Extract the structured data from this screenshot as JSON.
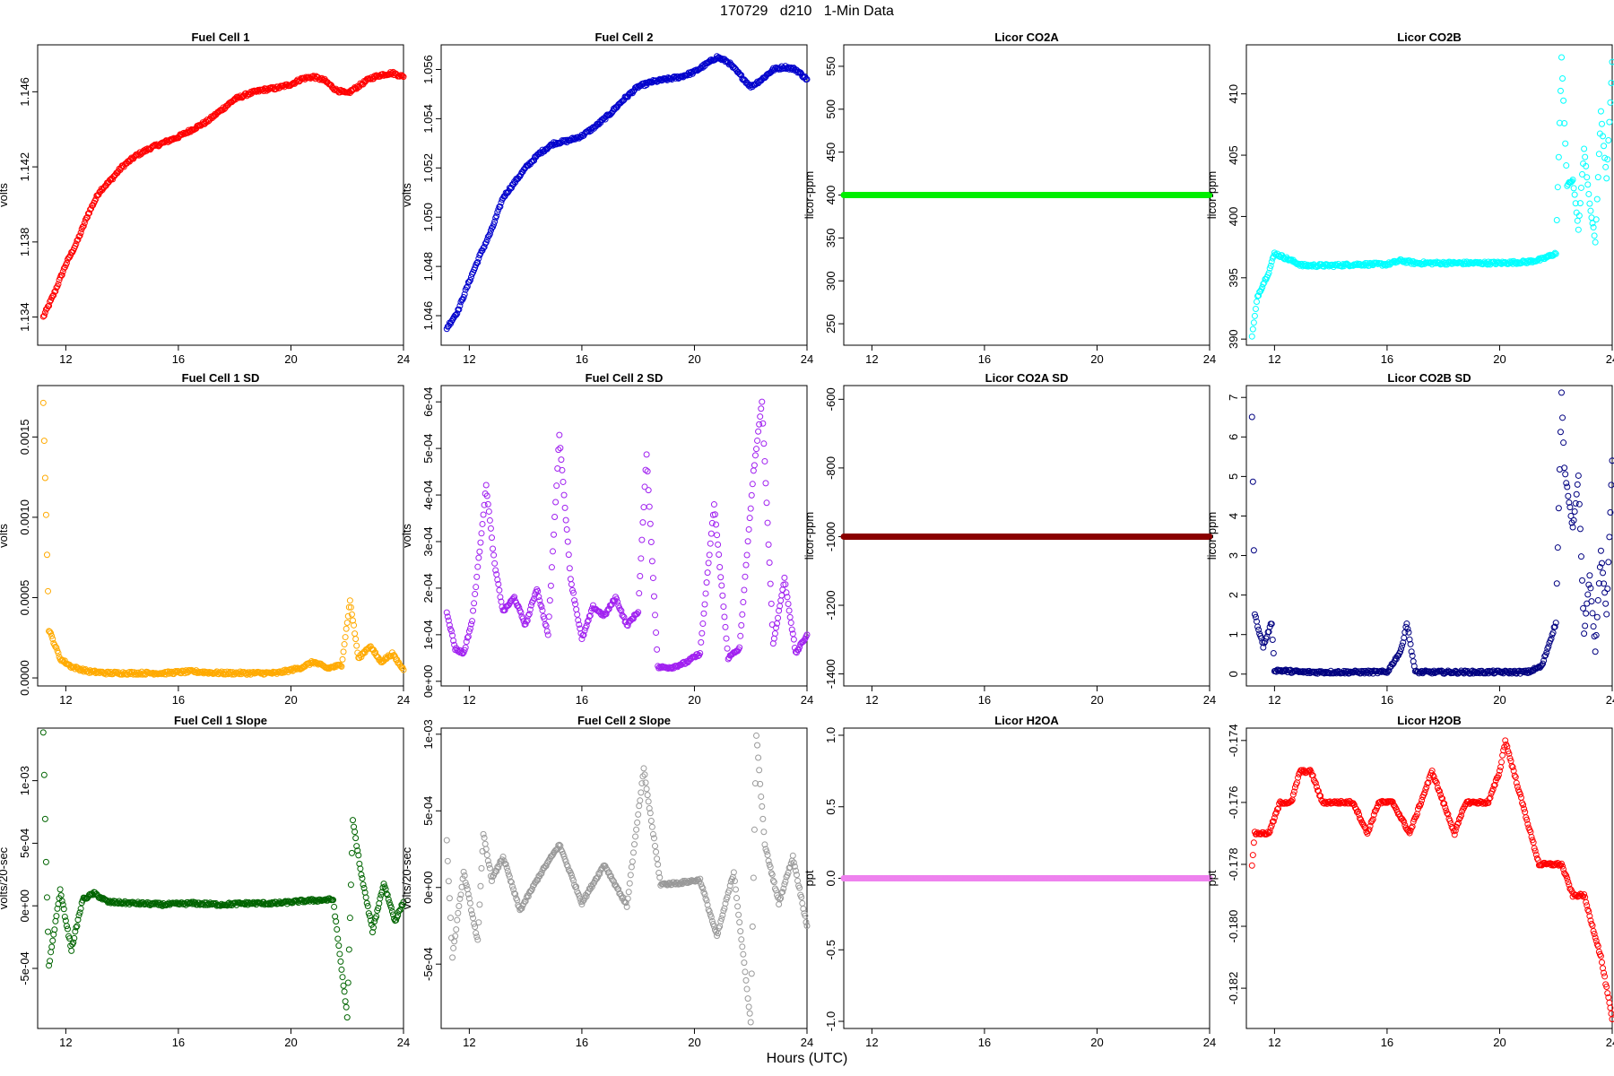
{
  "header": {
    "title": "170729   d210   1-Min Data",
    "x_axis_title": "Hours (UTC)"
  },
  "chart_data": [
    {
      "type": "scatter",
      "title": "Fuel Cell 1",
      "ylabel": "volts",
      "color": "#ff0000",
      "xlim": [
        11,
        24
      ],
      "ylim": [
        1.1325,
        1.1485
      ],
      "xticks": [
        12,
        16,
        20,
        24
      ],
      "yticks": [
        1.134,
        1.138,
        1.142,
        1.146
      ],
      "ytick_labels": [
        "1.134",
        "1.138",
        "1.142",
        "1.146"
      ],
      "series": [
        {
          "x": [
            11.2,
            11.6,
            12.0,
            12.4,
            12.8,
            13.2,
            13.6,
            14.0,
            14.5,
            15.0,
            15.5,
            16.0,
            16.5,
            17.0,
            17.5,
            18.0,
            18.5,
            19.0,
            19.5,
            20.0,
            20.4,
            20.8,
            21.2,
            21.6,
            22.0,
            22.4,
            22.8,
            23.2,
            23.6,
            24.0
          ],
          "y": [
            1.134,
            1.1353,
            1.1368,
            1.138,
            1.1395,
            1.1407,
            1.1413,
            1.142,
            1.1426,
            1.143,
            1.1433,
            1.1436,
            1.144,
            1.1444,
            1.145,
            1.1456,
            1.1459,
            1.1461,
            1.1462,
            1.1464,
            1.1467,
            1.1468,
            1.1466,
            1.1461,
            1.1459,
            1.1463,
            1.1467,
            1.1469,
            1.147,
            1.1468
          ]
        }
      ]
    },
    {
      "type": "scatter",
      "title": "Fuel Cell 2",
      "ylabel": "volts",
      "color": "#0000cc",
      "xlim": [
        11,
        24
      ],
      "ylim": [
        1.0448,
        1.057
      ],
      "xticks": [
        12,
        16,
        20,
        24
      ],
      "yticks": [
        1.046,
        1.048,
        1.05,
        1.052,
        1.054,
        1.056
      ],
      "ytick_labels": [
        "1.046",
        "1.048",
        "1.050",
        "1.052",
        "1.054",
        "1.056"
      ],
      "series": [
        {
          "x": [
            11.2,
            11.6,
            12.0,
            12.4,
            12.8,
            13.2,
            13.6,
            14.0,
            14.5,
            15.0,
            15.5,
            16.0,
            16.5,
            17.0,
            17.5,
            18.0,
            18.5,
            19.0,
            19.5,
            20.0,
            20.4,
            20.8,
            21.2,
            21.6,
            22.0,
            22.4,
            22.8,
            23.2,
            23.6,
            24.0
          ],
          "y": [
            1.0455,
            1.0462,
            1.0474,
            1.0485,
            1.0495,
            1.0508,
            1.0514,
            1.052,
            1.0526,
            1.053,
            1.0531,
            1.0533,
            1.0537,
            1.0542,
            1.0548,
            1.0553,
            1.0555,
            1.0556,
            1.0557,
            1.0559,
            1.0562,
            1.0565,
            1.0563,
            1.0558,
            1.0553,
            1.0556,
            1.056,
            1.0561,
            1.056,
            1.0556
          ]
        }
      ]
    },
    {
      "type": "scatter",
      "title": "Licor CO2A",
      "ylabel": "licor-ppm",
      "color": "#00ee00",
      "xlim": [
        11,
        24
      ],
      "ylim": [
        225,
        575
      ],
      "xticks": [
        12,
        16,
        20,
        24
      ],
      "yticks": [
        250,
        300,
        350,
        400,
        450,
        500,
        550
      ],
      "ytick_labels": [
        "250",
        "300",
        "350",
        "400",
        "450",
        "500",
        "550"
      ],
      "series": [
        {
          "x": [
            11.0,
            24.0
          ],
          "y": [
            400,
            400
          ]
        }
      ]
    },
    {
      "type": "scatter",
      "title": "Licor CO2B",
      "ylabel": "licor-ppm",
      "color": "#00ffff",
      "xlim": [
        11,
        24
      ],
      "ylim": [
        389.5,
        414
      ],
      "xticks": [
        12,
        16,
        20,
        24
      ],
      "yticks": [
        390,
        395,
        400,
        405,
        410
      ],
      "ytick_labels": [
        "390",
        "395",
        "400",
        "405",
        "410"
      ],
      "series": [
        {
          "x": [
            11.2,
            11.4,
            11.6,
            11.8,
            12.0,
            13.0,
            14.0,
            15.0,
            16.0,
            16.5,
            17.0,
            18.0,
            19.0,
            20.0,
            21.0,
            21.5,
            22.0,
            22.2,
            22.4,
            22.6,
            22.8,
            23.0,
            23.2,
            23.4,
            23.6,
            23.8,
            24.0
          ],
          "y": [
            390.2,
            393.5,
            394.5,
            395.5,
            397.0,
            396.0,
            396.0,
            396.1,
            396.1,
            396.4,
            396.2,
            396.2,
            396.2,
            396.2,
            396.3,
            396.5,
            397.0,
            412.9,
            402.5,
            403.0,
            399.0,
            405.5,
            401.0,
            398.0,
            408.5,
            403.0,
            412.6
          ]
        }
      ]
    },
    {
      "type": "scatter",
      "title": "Fuel Cell 1 SD",
      "ylabel": "volts",
      "color": "#ffaa00",
      "xlim": [
        11,
        24
      ],
      "ylim": [
        -5e-05,
        0.00182
      ],
      "xticks": [
        12,
        16,
        20,
        24
      ],
      "yticks": [
        0.0,
        0.0005,
        0.001,
        0.0015
      ],
      "ytick_labels": [
        "0.0000",
        "0.0005",
        "0.0010",
        "0.0015"
      ],
      "series": [
        {
          "x": [
            11.2,
            11.4,
            11.8,
            12.2,
            12.8,
            13.5,
            14.5,
            15.5,
            16.5,
            17.5,
            18.5,
            19.5,
            20.3,
            20.8,
            21.3,
            21.8,
            22.1,
            22.4,
            22.8,
            23.2,
            23.6,
            24.0
          ],
          "y": [
            0.00172,
            0.0003,
            0.00012,
            7e-05,
            4e-05,
            3e-05,
            3e-05,
            3e-05,
            4e-05,
            3e-05,
            3e-05,
            3e-05,
            6e-05,
            0.0001,
            6e-05,
            8e-05,
            0.00048,
            0.00012,
            0.0002,
            0.0001,
            0.00015,
            5e-05
          ]
        }
      ]
    },
    {
      "type": "scatter",
      "title": "Fuel Cell 2 SD",
      "ylabel": "volts",
      "color": "#a020f0",
      "xlim": [
        11,
        24
      ],
      "ylim": [
        -1e-05,
        0.000635
      ],
      "xticks": [
        12,
        16,
        20,
        24
      ],
      "yticks": [
        0.0,
        0.0001,
        0.0002,
        0.0003,
        0.0004,
        0.0005,
        0.0006
      ],
      "ytick_labels": [
        "0e+00",
        "1e-04",
        "2e-04",
        "3e-04",
        "4e-04",
        "5e-04",
        "6e-04"
      ],
      "series": [
        {
          "x": [
            11.2,
            11.5,
            11.8,
            12.1,
            12.4,
            12.6,
            12.9,
            13.2,
            13.6,
            14.0,
            14.4,
            14.8,
            15.2,
            15.6,
            16.0,
            16.4,
            16.8,
            17.2,
            17.6,
            18.0,
            18.3,
            18.7,
            19.2,
            19.7,
            20.2,
            20.7,
            21.2,
            21.6,
            22.1,
            22.4,
            22.8,
            23.2,
            23.6,
            24.0
          ],
          "y": [
            0.00015,
            7e-05,
            6e-05,
            0.00013,
            0.0003,
            0.00042,
            0.00025,
            0.00015,
            0.00018,
            0.00012,
            0.0002,
            0.0001,
            0.00053,
            0.00022,
            9e-05,
            0.00016,
            0.00014,
            0.00018,
            0.00012,
            0.00015,
            0.00049,
            3e-05,
            3e-05,
            4e-05,
            6e-05,
            0.00038,
            5e-05,
            7e-05,
            0.00045,
            0.0006,
            8e-05,
            0.00022,
            6e-05,
            0.0001
          ]
        }
      ]
    },
    {
      "type": "scatter",
      "title": "Licor CO2A SD",
      "ylabel": "licor-ppm",
      "color": "#8b0000",
      "xlim": [
        11,
        24
      ],
      "ylim": [
        -1435,
        -560
      ],
      "xticks": [
        12,
        16,
        20,
        24
      ],
      "yticks": [
        -1400,
        -1200,
        -1000,
        -800,
        -600
      ],
      "ytick_labels": [
        "-1400",
        "-1200",
        "-1000",
        "-800",
        "-600"
      ],
      "series": [
        {
          "x": [
            11.0,
            24.0
          ],
          "y": [
            -1000,
            -1000
          ]
        }
      ]
    },
    {
      "type": "scatter",
      "title": "Licor CO2B SD",
      "ylabel": "licor-ppm",
      "color": "#000080",
      "xlim": [
        11,
        24
      ],
      "ylim": [
        -0.3,
        7.3
      ],
      "xticks": [
        12,
        16,
        20,
        24
      ],
      "yticks": [
        0,
        1,
        2,
        3,
        4,
        5,
        6,
        7
      ],
      "ytick_labels": [
        "0",
        "1",
        "2",
        "3",
        "4",
        "5",
        "6",
        "7"
      ],
      "series": [
        {
          "x": [
            11.2,
            11.3,
            11.6,
            11.9,
            12.0,
            13.0,
            14.0,
            15.0,
            16.0,
            16.5,
            16.7,
            17.0,
            18.0,
            19.0,
            20.0,
            21.0,
            21.5,
            22.0,
            22.2,
            22.3,
            22.6,
            22.8,
            23.0,
            23.2,
            23.4,
            23.6,
            23.8,
            24.0
          ],
          "y": [
            6.5,
            1.5,
            0.7,
            1.3,
            0.1,
            0.05,
            0.05,
            0.05,
            0.05,
            0.6,
            1.3,
            0.05,
            0.05,
            0.05,
            0.05,
            0.05,
            0.2,
            1.3,
            7.1,
            5.2,
            3.7,
            5.0,
            1.0,
            2.5,
            0.6,
            3.1,
            1.5,
            5.4
          ]
        }
      ]
    },
    {
      "type": "scatter",
      "title": "Fuel Cell 1 Slope",
      "ylabel": "volts/20-sec",
      "color": "#006400",
      "xlim": [
        11,
        24
      ],
      "ylim": [
        -0.00098,
        0.00142
      ],
      "xticks": [
        12,
        16,
        20,
        24
      ],
      "yticks": [
        -0.0005,
        0.0,
        0.0005,
        0.001
      ],
      "ytick_labels": [
        "-5e-04",
        "0e+00",
        "5e-04",
        "1e-03"
      ],
      "series": [
        {
          "x": [
            11.2,
            11.3,
            11.4,
            11.8,
            12.2,
            12.6,
            13.0,
            13.5,
            14.5,
            15.5,
            16.5,
            17.5,
            18.5,
            19.5,
            20.5,
            21.5,
            22.0,
            22.2,
            22.5,
            22.9,
            23.3,
            23.7,
            24.0
          ],
          "y": [
            0.00138,
            0.00035,
            -0.00048,
            0.00012,
            -0.00035,
            5e-05,
            0.0001,
            3e-05,
            2e-05,
            1e-05,
            2e-05,
            1e-05,
            2e-05,
            2e-05,
            4e-05,
            5e-05,
            -0.00088,
            0.00068,
            0.00025,
            -0.0002,
            0.00018,
            -0.00012,
            3e-05
          ]
        }
      ]
    },
    {
      "type": "scatter",
      "title": "Fuel Cell 2 Slope",
      "ylabel": "volts/20-sec",
      "color": "#999999",
      "xlim": [
        11,
        24
      ],
      "ylim": [
        -0.00092,
        0.00104
      ],
      "xticks": [
        12,
        16,
        20,
        24
      ],
      "yticks": [
        -0.0005,
        0.0,
        0.0005,
        0.001
      ],
      "ytick_labels": [
        "-5e-04",
        "0e+00",
        "5e-04",
        "1e-03"
      ],
      "series": [
        {
          "x": [
            11.2,
            11.4,
            11.8,
            12.3,
            12.5,
            12.8,
            13.2,
            13.8,
            14.5,
            15.2,
            16.0,
            16.8,
            17.6,
            18.2,
            18.8,
            19.5,
            20.2,
            20.8,
            21.4,
            22.0,
            22.2,
            22.5,
            23.0,
            23.5,
            24.0
          ],
          "y": [
            0.0003,
            -0.00045,
            0.0001,
            -0.00035,
            0.00035,
            5e-05,
            0.0002,
            -0.00015,
            8e-05,
            0.00028,
            -0.0001,
            0.00015,
            -0.00012,
            0.00077,
            2e-05,
            3e-05,
            5e-05,
            -0.00032,
            0.0001,
            -0.00088,
            0.001,
            0.00028,
            -0.0001,
            0.0002,
            -0.00025
          ]
        }
      ]
    },
    {
      "type": "scatter",
      "title": "Licor H2OA",
      "ylabel": "ppt",
      "color": "#ee82ee",
      "xlim": [
        11,
        24
      ],
      "ylim": [
        -1.05,
        1.05
      ],
      "xticks": [
        12,
        16,
        20,
        24
      ],
      "yticks": [
        -1.0,
        -0.5,
        0.0,
        0.5,
        1.0
      ],
      "ytick_labels": [
        "-1.0",
        "-0.5",
        "0.0",
        "0.5",
        "1.0"
      ],
      "series": [
        {
          "x": [
            11.0,
            24.0
          ],
          "y": [
            0.0,
            0.0
          ]
        }
      ]
    },
    {
      "type": "scatter",
      "title": "Licor H2OB",
      "ylabel": "ppt",
      "color": "#ff0000",
      "xlim": [
        11,
        24
      ],
      "ylim": [
        -0.1833,
        -0.1736
      ],
      "xticks": [
        12,
        16,
        20,
        24
      ],
      "yticks": [
        -0.182,
        -0.18,
        -0.178,
        -0.176,
        -0.174
      ],
      "ytick_labels": [
        "-0.182",
        "-0.180",
        "-0.178",
        "-0.176",
        "-0.174"
      ],
      "series": [
        {
          "x": [
            11.2,
            11.3,
            11.8,
            12.2,
            12.6,
            12.9,
            13.3,
            13.7,
            14.2,
            14.8,
            15.3,
            15.7,
            16.2,
            16.8,
            17.2,
            17.6,
            18.0,
            18.4,
            18.8,
            19.2,
            19.6,
            20.0,
            20.2,
            20.5,
            20.8,
            21.1,
            21.4,
            21.8,
            22.2,
            22.6,
            23.0,
            23.3,
            23.6,
            24.0
          ],
          "y": [
            -0.178,
            -0.177,
            -0.177,
            -0.176,
            -0.176,
            -0.175,
            -0.175,
            -0.176,
            -0.176,
            -0.176,
            -0.177,
            -0.176,
            -0.176,
            -0.177,
            -0.176,
            -0.175,
            -0.176,
            -0.177,
            -0.176,
            -0.176,
            -0.176,
            -0.175,
            -0.174,
            -0.175,
            -0.176,
            -0.177,
            -0.178,
            -0.178,
            -0.178,
            -0.179,
            -0.179,
            -0.18,
            -0.181,
            -0.183
          ]
        }
      ]
    }
  ]
}
